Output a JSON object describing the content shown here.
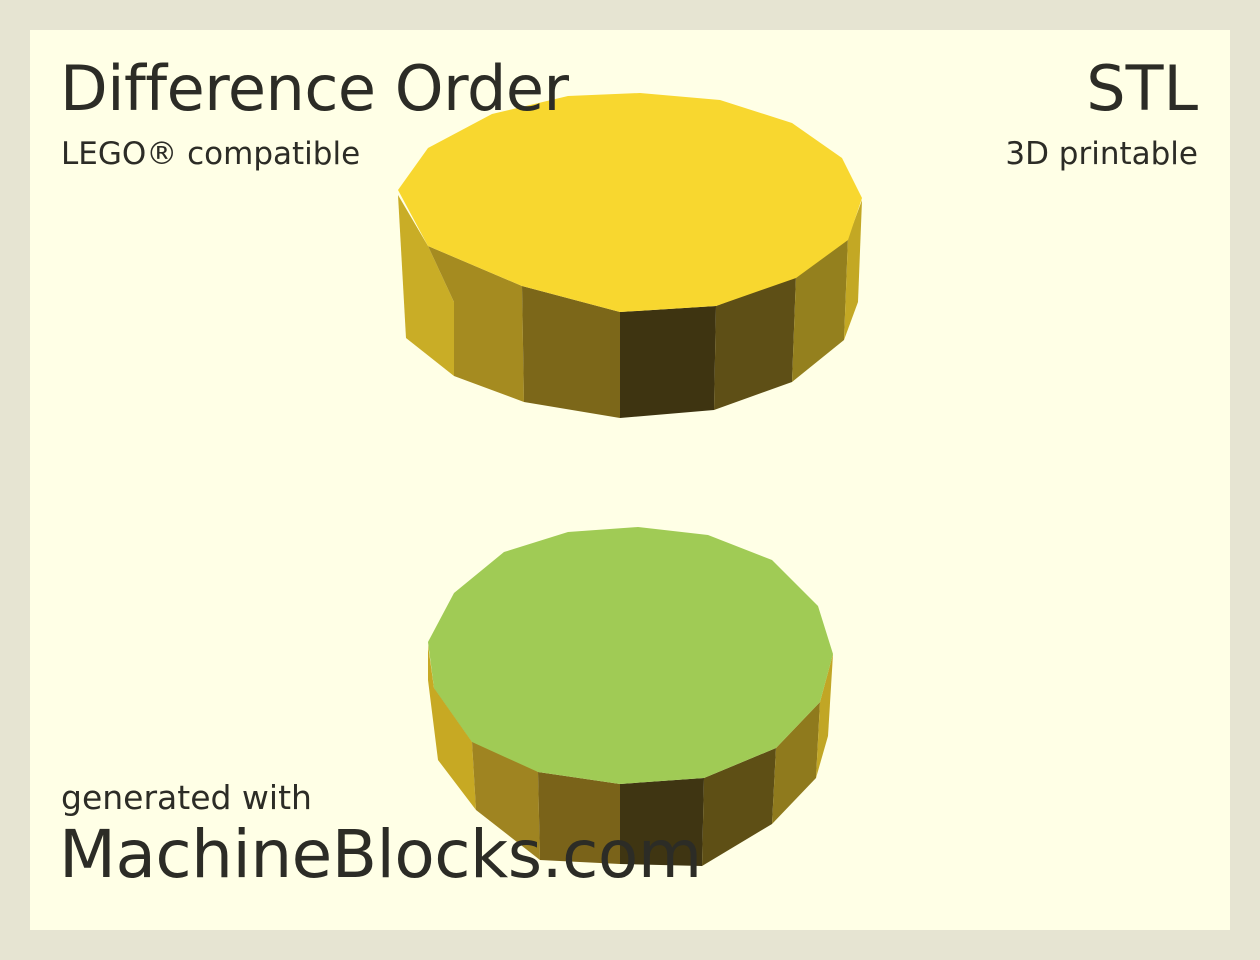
{
  "header": {
    "title": "Difference Order",
    "subtitle": "LEGO® compatible",
    "format": "STL",
    "format_note": "3D printable"
  },
  "footer": {
    "generated_with": "generated with",
    "site": "MachineBlocks.com"
  },
  "colors": {
    "background_outer": "#e6e4d2",
    "background_card": "#ffffe6",
    "text": "#2c2c26",
    "cylinder_top_yellow": "#f8d72f",
    "cylinder_top_green": "#a0cb55"
  },
  "models": [
    {
      "name": "upper-cylinder",
      "color": "yellow"
    },
    {
      "name": "lower-cylinder",
      "color": "green"
    }
  ]
}
